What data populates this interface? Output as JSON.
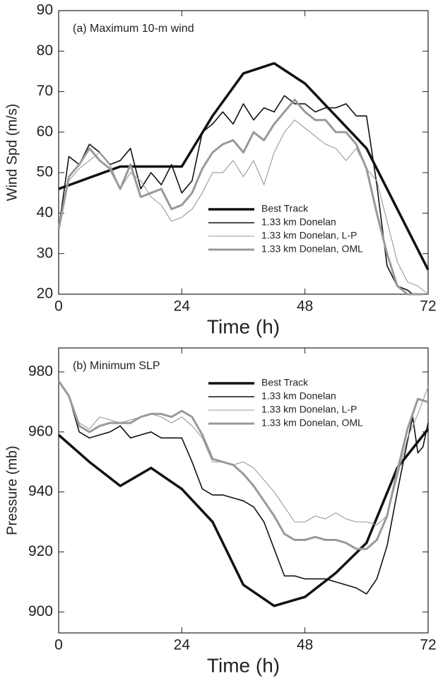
{
  "chart_data": [
    {
      "type": "line",
      "title": "(a) Maximum 10-m wind",
      "x_label": "Time (h)",
      "y_label": "Wind Spd (m/s)",
      "xlim": [
        0,
        72
      ],
      "xticks": [
        0,
        24,
        48,
        72
      ],
      "ylim": [
        20,
        90
      ],
      "yticks": [
        20,
        30,
        40,
        50,
        60,
        70,
        80,
        90
      ],
      "legend": "lower right",
      "series": [
        {
          "name": "Best Track",
          "color": "#111111",
          "x": [
            0,
            12,
            24,
            30,
            36,
            42,
            48,
            54,
            60,
            66,
            72
          ],
          "values": [
            46,
            51.5,
            51.5,
            64,
            74.5,
            77,
            72,
            64,
            56,
            41,
            26
          ]
        },
        {
          "name": "1.33 km Donelan",
          "color": "#111111",
          "x": [
            0,
            2,
            4,
            6,
            8,
            10,
            12,
            14,
            16,
            18,
            20,
            22,
            24,
            26,
            28,
            30,
            32,
            34,
            36,
            38,
            40,
            42,
            44,
            46,
            48,
            50,
            52,
            54,
            56,
            58,
            60,
            62,
            64,
            66,
            68,
            69
          ],
          "values": [
            36,
            54,
            52,
            57,
            55,
            52,
            53,
            56,
            46,
            50,
            47,
            52,
            45,
            48,
            60,
            62,
            65,
            62,
            67,
            63,
            66,
            65,
            69,
            67,
            67,
            65,
            66,
            66,
            67,
            64,
            64,
            47,
            27,
            22,
            21,
            20
          ]
        },
        {
          "name": "1.33 km Donelan, L-P",
          "color": "#999999",
          "x": [
            0,
            2,
            4,
            6,
            8,
            10,
            12,
            14,
            16,
            18,
            20,
            22,
            24,
            26,
            28,
            30,
            32,
            34,
            36,
            38,
            40,
            42,
            44,
            46,
            48,
            50,
            52,
            54,
            56,
            58,
            60,
            62,
            64,
            66,
            68,
            70,
            72
          ],
          "values": [
            36,
            48,
            51,
            53,
            55,
            52,
            46,
            50,
            48,
            44,
            42,
            38,
            39,
            41,
            45,
            50,
            50,
            53,
            49,
            53,
            47,
            55,
            60,
            63,
            61,
            59,
            57,
            56,
            53,
            56,
            51,
            48,
            38,
            28,
            23,
            22,
            20
          ]
        },
        {
          "name": "1.33 km Donelan, OML",
          "color": "#999999",
          "x": [
            0,
            2,
            4,
            6,
            8,
            10,
            12,
            14,
            16,
            18,
            20,
            22,
            24,
            26,
            28,
            30,
            32,
            34,
            36,
            38,
            40,
            42,
            44,
            46,
            48,
            50,
            52,
            54,
            56,
            58,
            60,
            62,
            64,
            66,
            68,
            70,
            71
          ],
          "values": [
            36,
            49,
            52,
            56,
            53,
            51,
            46,
            52,
            44,
            45,
            46,
            41,
            42,
            45,
            51,
            55,
            57,
            58,
            55,
            60,
            58,
            62,
            65,
            68,
            65,
            63,
            63,
            60,
            60,
            57,
            51,
            40,
            30,
            22,
            20,
            20,
            20
          ]
        }
      ]
    },
    {
      "type": "line",
      "title": "(b) Minimum SLP",
      "x_label": "Time (h)",
      "y_label": "Pressure (mb)",
      "xlim": [
        0,
        72
      ],
      "xticks": [
        0,
        24,
        48,
        72
      ],
      "ylim": [
        893,
        988
      ],
      "yticks": [
        900,
        920,
        940,
        960,
        980
      ],
      "legend": "upper right",
      "series": [
        {
          "name": "Best Track",
          "color": "#111111",
          "x": [
            0,
            6,
            12,
            18,
            24,
            30,
            36,
            42,
            48,
            54,
            60,
            66,
            72
          ],
          "values": [
            959,
            950,
            942,
            948,
            941,
            930,
            909,
            902,
            905,
            913,
            923,
            948,
            961
          ]
        },
        {
          "name": "1.33 km Donelan",
          "color": "#111111",
          "x": [
            0,
            2,
            4,
            6,
            8,
            10,
            12,
            14,
            16,
            18,
            20,
            22,
            24,
            26,
            28,
            30,
            32,
            34,
            36,
            38,
            40,
            42,
            44,
            46,
            48,
            50,
            52,
            54,
            56,
            58,
            60,
            62,
            64,
            66,
            68,
            69,
            70,
            71,
            72
          ],
          "values": [
            977,
            972,
            960,
            958,
            959,
            960,
            962,
            958,
            959,
            960,
            958,
            958,
            958,
            950,
            941,
            939,
            939,
            938,
            937,
            935,
            930,
            921,
            912,
            912,
            911,
            911,
            911,
            910,
            909,
            908,
            906,
            911,
            922,
            940,
            957,
            965,
            953,
            955,
            963
          ]
        },
        {
          "name": "1.33 km Donelan, L-P",
          "color": "#999999",
          "x": [
            0,
            2,
            4,
            6,
            8,
            10,
            12,
            14,
            16,
            18,
            20,
            22,
            24,
            26,
            28,
            30,
            32,
            34,
            36,
            38,
            40,
            42,
            44,
            46,
            48,
            50,
            52,
            54,
            56,
            58,
            60,
            62,
            64,
            66,
            68,
            70,
            72
          ],
          "values": [
            977,
            972,
            963,
            961,
            965,
            964,
            963,
            964,
            965,
            966,
            965,
            963,
            965,
            962,
            958,
            950,
            950,
            949,
            950,
            948,
            944,
            940,
            935,
            930,
            930,
            932,
            931,
            933,
            931,
            930,
            930,
            929,
            932,
            945,
            958,
            966,
            975
          ]
        },
        {
          "name": "1.33 km Donelan, OML",
          "color": "#999999",
          "x": [
            0,
            2,
            4,
            6,
            8,
            10,
            12,
            14,
            16,
            18,
            20,
            22,
            24,
            26,
            28,
            30,
            32,
            34,
            36,
            38,
            40,
            42,
            44,
            46,
            48,
            50,
            52,
            54,
            56,
            58,
            60,
            62,
            64,
            66,
            68,
            70,
            72
          ],
          "values": [
            977,
            972,
            962,
            960,
            962,
            963,
            963,
            963,
            965,
            966,
            966,
            965,
            967,
            965,
            959,
            951,
            950,
            949,
            946,
            942,
            937,
            932,
            926,
            924,
            924,
            925,
            924,
            924,
            923,
            921,
            921,
            924,
            932,
            947,
            961,
            971,
            970
          ]
        }
      ]
    }
  ]
}
